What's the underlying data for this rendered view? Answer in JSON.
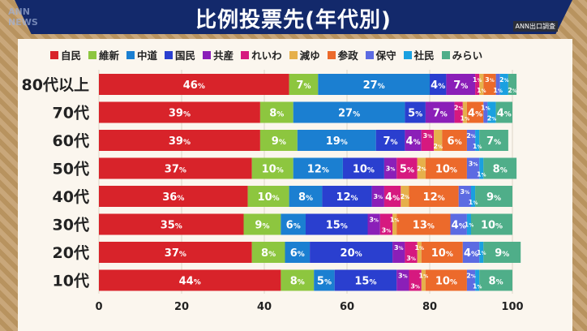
{
  "header": {
    "title": "比例投票先(年代別)",
    "source": "ANN出口調査",
    "logo": "ANN NEWS"
  },
  "chart_data": {
    "type": "bar",
    "orientation": "horizontal-stacked",
    "title": "比例投票先(年代別)",
    "categories": [
      "80代以上",
      "70代",
      "60代",
      "50代",
      "40代",
      "30代",
      "20代",
      "10代"
    ],
    "series": [
      {
        "name": "自民",
        "color": "#d8232a",
        "values": [
          46,
          39,
          39,
          37,
          36,
          35,
          37,
          44
        ]
      },
      {
        "name": "維新",
        "color": "#8dc63f",
        "values": [
          7,
          8,
          9,
          10,
          10,
          9,
          8,
          8
        ]
      },
      {
        "name": "中道",
        "color": "#1b7fd1",
        "values": [
          27,
          27,
          19,
          12,
          8,
          6,
          6,
          5
        ]
      },
      {
        "name": "国民",
        "color": "#2a3fcf",
        "values": [
          4,
          5,
          7,
          10,
          12,
          15,
          20,
          15
        ]
      },
      {
        "name": "共産",
        "color": "#8b1fb8",
        "values": [
          7,
          7,
          4,
          3,
          3,
          3,
          3,
          3
        ]
      },
      {
        "name": "れいわ",
        "color": "#d6197f",
        "values": [
          1,
          2,
          3,
          5,
          4,
          3,
          3,
          3
        ]
      },
      {
        "name": "減ゆ",
        "color": "#e6b04b",
        "values": [
          1,
          1,
          2,
          2,
          2,
          1,
          1,
          1
        ]
      },
      {
        "name": "参政",
        "color": "#ec6a2b",
        "values": [
          3,
          4,
          6,
          10,
          12,
          13,
          10,
          10
        ]
      },
      {
        "name": "保守",
        "color": "#5c6be2",
        "values": [
          1,
          1,
          2,
          3,
          3,
          4,
          4,
          2
        ]
      },
      {
        "name": "社民",
        "color": "#1aa0e0",
        "values": [
          2,
          2,
          1,
          1,
          1,
          1,
          1,
          1
        ]
      },
      {
        "name": "みらい",
        "color": "#4fae89",
        "values": [
          2,
          4,
          7,
          8,
          9,
          10,
          9,
          8
        ]
      }
    ],
    "unit": "%",
    "xlim": [
      0,
      100
    ],
    "xticks": [
      0,
      20,
      40,
      60,
      80,
      100
    ],
    "grid": true,
    "legend": "top"
  }
}
